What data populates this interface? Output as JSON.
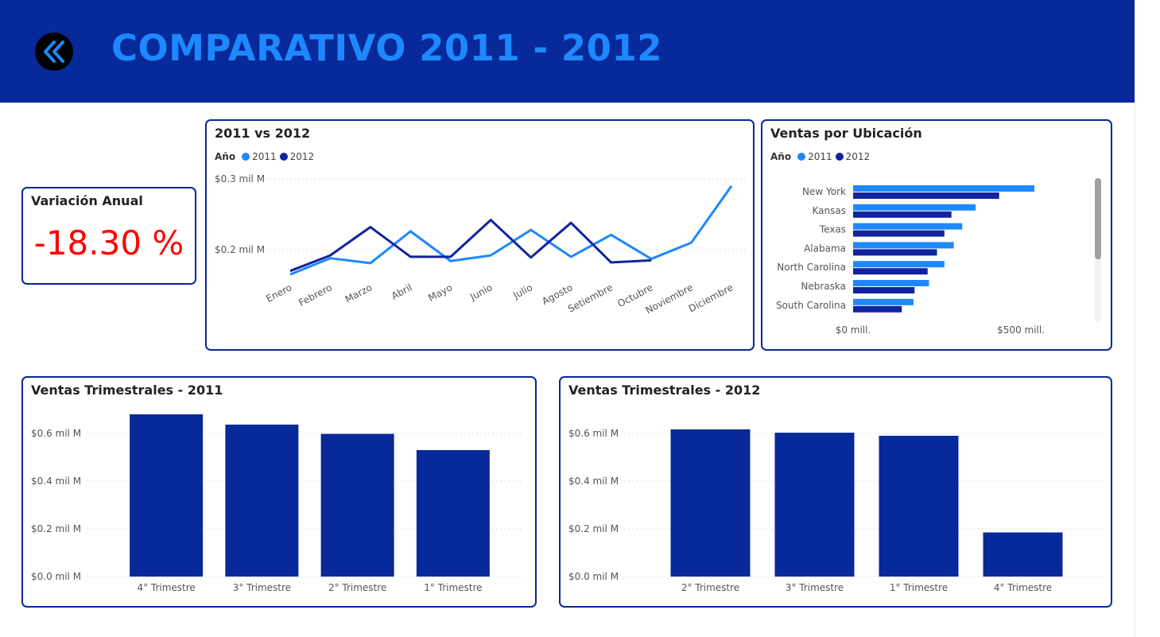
{
  "header": {
    "title": "COMPARATIVO 2011 - 2012",
    "back_icon": "double-chevron-left-icon",
    "bg_color": "#07299a",
    "title_color": "#1e88ff"
  },
  "kpi": {
    "title": "Variación Anual",
    "value": "-18.30 %",
    "value_color": "#ff0000"
  },
  "line_card": {
    "title": "2011 vs 2012",
    "legend_title": "Año",
    "legend": [
      "2011",
      "2012"
    ]
  },
  "location_card": {
    "title": "Ventas por Ubicación",
    "legend_title": "Año",
    "legend": [
      "2011",
      "2012"
    ]
  },
  "q2011_card": {
    "title": "Ventas Trimestrales - 2011"
  },
  "q2012_card": {
    "title": "Ventas Trimestrales - 2012"
  },
  "colors": {
    "series_2011": "#1e88ff",
    "series_2012": "#12239e",
    "bar": "#07299a"
  },
  "chart_data": [
    {
      "type": "line",
      "title": "2011 vs 2012",
      "categories": [
        "Enero",
        "Febrero",
        "Marzo",
        "Abril",
        "Mayo",
        "Junio",
        "Julio",
        "Agosto",
        "Setiembre",
        "Octubre",
        "Noviembre",
        "Diciembre"
      ],
      "series": [
        {
          "name": "2011",
          "values": [
            0.165,
            0.188,
            0.181,
            0.226,
            0.184,
            0.192,
            0.228,
            0.19,
            0.221,
            0.187,
            0.21,
            0.29
          ]
        },
        {
          "name": "2012",
          "values": [
            0.17,
            0.192,
            0.232,
            0.19,
            0.19,
            0.242,
            0.189,
            0.238,
            0.182,
            0.185,
            null,
            null
          ]
        }
      ],
      "yticks": [
        {
          "value": 0.2,
          "label": "$0.2 mil M"
        },
        {
          "value": 0.3,
          "label": "$0.3 mil M"
        }
      ],
      "ylim": [
        0.1,
        0.3
      ],
      "grid": true,
      "legend": "top-left"
    },
    {
      "type": "bar",
      "orientation": "horizontal",
      "title": "Ventas por Ubicación",
      "categories": [
        "New York",
        "Kansas",
        "Texas",
        "Alabama",
        "North Carolina",
        "Nebraska",
        "South Carolina"
      ],
      "series": [
        {
          "name": "2011",
          "values": [
            540,
            365,
            325,
            300,
            272,
            226,
            180
          ]
        },
        {
          "name": "2012",
          "values": [
            435,
            293,
            272,
            250,
            222,
            183,
            145
          ]
        }
      ],
      "xticks": [
        {
          "value": 0,
          "label": "$0 mill."
        },
        {
          "value": 500,
          "label": "$500 mill."
        }
      ],
      "xlim": [
        0,
        620
      ],
      "legend": "top-left"
    },
    {
      "type": "bar",
      "title": "Ventas Trimestrales - 2011",
      "categories": [
        "4° Trimestre",
        "3° Trimestre",
        "2° Trimestre",
        "1° Trimestre"
      ],
      "values": [
        0.68,
        0.637,
        0.598,
        0.53
      ],
      "yticks": [
        {
          "value": 0.0,
          "label": "$0.0 mil M"
        },
        {
          "value": 0.2,
          "label": "$0.2 mil M"
        },
        {
          "value": 0.4,
          "label": "$0.4 mil M"
        },
        {
          "value": 0.6,
          "label": "$0.6 mil M"
        }
      ],
      "ylim": [
        0,
        0.7
      ],
      "grid": true
    },
    {
      "type": "bar",
      "title": "Ventas Trimestrales - 2012",
      "categories": [
        "2° Trimestre",
        "3° Trimestre",
        "1° Trimestre",
        "4° Trimestre"
      ],
      "values": [
        0.617,
        0.603,
        0.59,
        0.185
      ],
      "yticks": [
        {
          "value": 0.0,
          "label": "$0.0 mil M"
        },
        {
          "value": 0.2,
          "label": "$0.2 mil M"
        },
        {
          "value": 0.4,
          "label": "$0.4 mil M"
        },
        {
          "value": 0.6,
          "label": "$0.6 mil M"
        }
      ],
      "ylim": [
        0,
        0.7
      ],
      "grid": true
    }
  ]
}
